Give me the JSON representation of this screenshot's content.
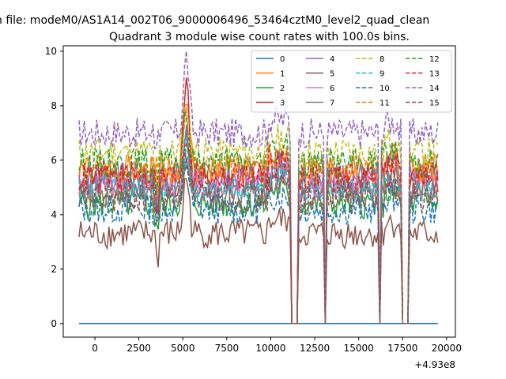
{
  "chart_data": {
    "type": "line",
    "suptitle": "n file: modeM0/AS1A14_002T06_9000006496_53464cztM0_level2_quad_clean",
    "title": "Quadrant 3 module wise count rates with 100.0s bins.",
    "xlabel": "",
    "ylabel": "",
    "x_offset_label": "+4.93e8",
    "xlim": [
      -1800,
      20500
    ],
    "ylim": [
      -0.5,
      10.2
    ],
    "x_ticks": [
      0,
      2500,
      5000,
      7500,
      10000,
      12500,
      15000,
      17500,
      20000
    ],
    "x_tick_labels": [
      "0",
      "2500",
      "5000",
      "7500",
      "10000",
      "12500",
      "15000",
      "17500",
      "20000"
    ],
    "y_ticks": [
      0,
      2,
      4,
      6,
      8,
      10
    ],
    "y_tick_labels": [
      "0",
      "2",
      "4",
      "6",
      "8",
      "10"
    ],
    "legend": {
      "position": "top-right",
      "columns": 4
    },
    "x_range": [
      -900,
      19500
    ],
    "dropouts": [
      [
        11200,
        11500
      ],
      [
        13050,
        13150
      ],
      [
        16200,
        16280
      ],
      [
        17500,
        17800
      ]
    ],
    "series": [
      {
        "name": "0",
        "color": "#1f77b4",
        "dash": "solid",
        "base": 0.0,
        "peak": 0.0
      },
      {
        "name": "1",
        "color": "#ff7f0e",
        "dash": "solid",
        "base": 5.7,
        "peak": 8.5
      },
      {
        "name": "2",
        "color": "#2ca02c",
        "dash": "solid",
        "base": 4.4,
        "peak": 6.8
      },
      {
        "name": "3",
        "color": "#d62728",
        "dash": "solid",
        "base": 5.2,
        "peak": 9.3
      },
      {
        "name": "4",
        "color": "#9467bd",
        "dash": "solid",
        "base": 5.4,
        "peak": 6.9
      },
      {
        "name": "5",
        "color": "#8c564b",
        "dash": "solid",
        "base": 3.3,
        "peak": 5.4
      },
      {
        "name": "6",
        "color": "#e377c2",
        "dash": "solid",
        "base": 5.0,
        "peak": 6.5
      },
      {
        "name": "7",
        "color": "#7f7f7f",
        "dash": "solid",
        "base": 4.8,
        "peak": 6.0
      },
      {
        "name": "8",
        "color": "#bcbd22",
        "dash": "dashed",
        "base": 6.3,
        "peak": 8.0
      },
      {
        "name": "9",
        "color": "#17becf",
        "dash": "dashed",
        "base": 5.0,
        "peak": 6.5
      },
      {
        "name": "10",
        "color": "#1f77b4",
        "dash": "dashed",
        "base": 4.2,
        "peak": 6.0
      },
      {
        "name": "11",
        "color": "#ff7f0e",
        "dash": "dashed",
        "base": 5.6,
        "peak": 7.5
      },
      {
        "name": "12",
        "color": "#2ca02c",
        "dash": "dashed",
        "base": 5.9,
        "peak": 7.5
      },
      {
        "name": "13",
        "color": "#d62728",
        "dash": "dashed",
        "base": 5.4,
        "peak": 7.0
      },
      {
        "name": "14",
        "color": "#9467bd",
        "dash": "dashed",
        "base": 7.0,
        "peak": 9.8
      },
      {
        "name": "15",
        "color": "#8c564b",
        "dash": "dashed",
        "base": 4.6,
        "peak": 6.2
      }
    ]
  }
}
